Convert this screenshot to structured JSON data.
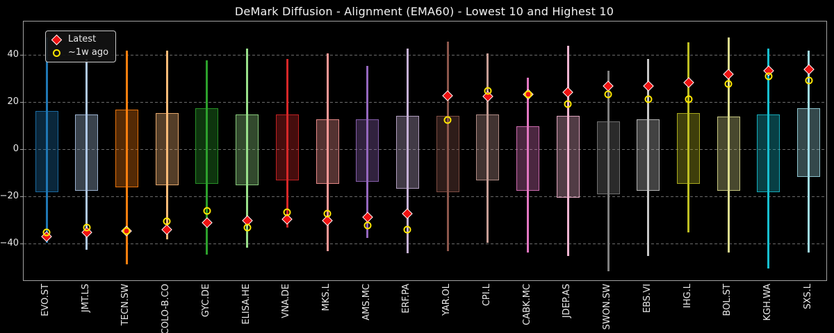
{
  "title": "DeMark Diffusion - Alignment (EMA60) - Lowest 10 and Highest 10",
  "legend": {
    "latest_label": "Latest",
    "week_ago_label": "~1w ago",
    "latest_color": "#ee1111",
    "latest_edge_color": "#ffffff",
    "week_ago_color": "#ffe600",
    "position": "upper-left"
  },
  "axes": {
    "yticks": [
      "40",
      "20",
      "0",
      "−20",
      "−40"
    ],
    "ytick_values": [
      40,
      20,
      0,
      -20,
      -40
    ],
    "ylim": [
      -55.4,
      54.4
    ],
    "grid": "horizontal-dashed",
    "grid_color": "#6b6b6b",
    "spine_color": "#a3a3a3",
    "background_color": "#000000",
    "text_color": "#e8e8e8"
  },
  "chart_data": {
    "type": "bar",
    "subtype": "range-whisker-with-iqr-box-and-point-markers",
    "title": "DeMark Diffusion - Alignment (EMA60) - Lowest 10 and Highest 10",
    "xlabel": "",
    "ylabel": "",
    "ylim": [
      -55.4,
      54.4
    ],
    "legend_entries": [
      "Latest",
      "~1w ago"
    ],
    "categories": [
      "EVO.ST",
      "JMT.LS",
      "TECN.SW",
      "COLO-B.CO",
      "GYC.DE",
      "ELISA.HE",
      "VNA.DE",
      "MKS.L",
      "AMS.MC",
      "ERF.PA",
      "YAR.OL",
      "CPI.L",
      "CABK.MC",
      "JDEP.AS",
      "SWON.SW",
      "EBS.VI",
      "IHG.L",
      "BOL.ST",
      "KGH.WA",
      "SXS.L"
    ],
    "series": [
      {
        "ticker": "EVO.ST",
        "color": "#1f77b4",
        "range_high": 47.5,
        "range_low": -39.5,
        "box_high": 16.5,
        "box_low": -18.0,
        "latest": -37.0,
        "week_ago": -35.0
      },
      {
        "ticker": "JMT.LS",
        "color": "#aec7e8",
        "range_high": 38.5,
        "range_low": -42.5,
        "box_high": 15.0,
        "box_low": -17.5,
        "latest": -35.0,
        "week_ago": -33.0
      },
      {
        "ticker": "TECN.SW",
        "color": "#ff7f0e",
        "range_high": 42.0,
        "range_low": -48.5,
        "box_high": 17.0,
        "box_low": -16.0,
        "latest": -34.5,
        "week_ago": -34.5
      },
      {
        "ticker": "COLO-B.CO",
        "color": "#ffbb78",
        "range_high": 42.0,
        "range_low": -38.0,
        "box_high": 15.5,
        "box_low": -15.0,
        "latest": -34.0,
        "week_ago": -30.5
      },
      {
        "ticker": "GYC.DE",
        "color": "#2ca02c",
        "range_high": 38.0,
        "range_low": -44.5,
        "box_high": 17.5,
        "box_low": -14.5,
        "latest": -31.0,
        "week_ago": -26.0
      },
      {
        "ticker": "ELISA.HE",
        "color": "#98df8a",
        "range_high": 43.0,
        "range_low": -41.5,
        "box_high": 15.0,
        "box_low": -15.0,
        "latest": -30.0,
        "week_ago": -33.0
      },
      {
        "ticker": "VNA.DE",
        "color": "#d62728",
        "range_high": 38.5,
        "range_low": -33.0,
        "box_high": 15.0,
        "box_low": -13.0,
        "latest": -29.5,
        "week_ago": -26.5
      },
      {
        "ticker": "MKS.L",
        "color": "#ff9896",
        "range_high": 41.0,
        "range_low": -43.0,
        "box_high": 13.0,
        "box_low": -14.5,
        "latest": -30.0,
        "week_ago": -27.0
      },
      {
        "ticker": "AMS.MC",
        "color": "#9467bd",
        "range_high": 35.5,
        "range_low": -37.5,
        "box_high": 13.0,
        "box_low": -13.5,
        "latest": -28.5,
        "week_ago": -32.0
      },
      {
        "ticker": "ERF.PA",
        "color": "#c5b0d5",
        "range_high": 43.0,
        "range_low": -44.0,
        "box_high": 14.5,
        "box_low": -16.5,
        "latest": -27.0,
        "week_ago": -34.0
      },
      {
        "ticker": "YAR.OL",
        "color": "#8c564b",
        "range_high": 46.0,
        "range_low": -43.0,
        "box_high": 14.5,
        "box_low": -18.0,
        "latest": 23.0,
        "week_ago": 12.5
      },
      {
        "ticker": "CPI.L",
        "color": "#c49c94",
        "range_high": 41.0,
        "range_low": -39.5,
        "box_high": 15.0,
        "box_low": -13.0,
        "latest": 22.5,
        "week_ago": 25.0
      },
      {
        "ticker": "CABK.MC",
        "color": "#e377c2",
        "range_high": 30.5,
        "range_low": -43.5,
        "box_high": 10.0,
        "box_low": -17.5,
        "latest": 23.5,
        "week_ago": 23.5
      },
      {
        "ticker": "JDEP.AS",
        "color": "#f7b6d2",
        "range_high": 44.0,
        "range_low": -45.0,
        "box_high": 14.5,
        "box_low": -20.5,
        "latest": 24.5,
        "week_ago": 19.5
      },
      {
        "ticker": "SWON.SW",
        "color": "#7f7f7f",
        "range_high": 33.5,
        "range_low": -51.5,
        "box_high": 12.0,
        "box_low": -19.0,
        "latest": 27.0,
        "week_ago": 23.5
      },
      {
        "ticker": "EBS.VI",
        "color": "#c7c7c7",
        "range_high": 38.5,
        "range_low": -45.0,
        "box_high": 13.0,
        "box_low": -17.5,
        "latest": 27.0,
        "week_ago": 21.5
      },
      {
        "ticker": "IHG.L",
        "color": "#bcbd22",
        "range_high": 45.5,
        "range_low": -35.0,
        "box_high": 15.5,
        "box_low": -14.5,
        "latest": 28.5,
        "week_ago": 21.5
      },
      {
        "ticker": "BOL.ST",
        "color": "#dbdb8d",
        "range_high": 47.5,
        "range_low": -43.5,
        "box_high": 14.0,
        "box_low": -17.5,
        "latest": 32.0,
        "week_ago": 28.0
      },
      {
        "ticker": "KGH.WA",
        "color": "#17becf",
        "range_high": 43.0,
        "range_low": -50.5,
        "box_high": 15.0,
        "box_low": -18.0,
        "latest": 33.5,
        "week_ago": 31.0
      },
      {
        "ticker": "SXS.L",
        "color": "#9edae5",
        "range_high": 42.0,
        "range_low": -43.5,
        "box_high": 17.5,
        "box_low": -11.5,
        "latest": 34.0,
        "week_ago": 29.5
      }
    ]
  }
}
